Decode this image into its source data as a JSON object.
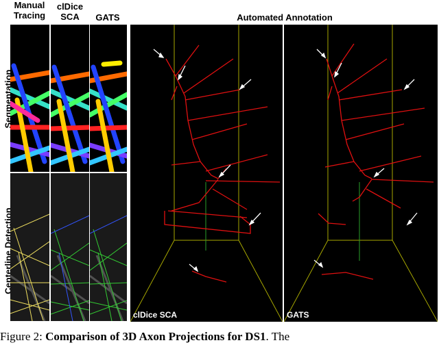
{
  "headers": {
    "manual_tracing": "Manual\nTracing",
    "cldice_sca": "clDice\nSCA",
    "gats": "GATS",
    "automated_annotation": "Automated Annotation"
  },
  "row_labels": {
    "segmentation": "Segmentation",
    "centerline": "Centerline Detection"
  },
  "panel_labels": {
    "left": "clDice SCA",
    "right": "GATS"
  },
  "caption": {
    "prefix": "Figure 2: ",
    "bold": "Comparison of 3D Axon Projections for DS1",
    "suffix": ". The"
  },
  "colors": {
    "trace_red": "#e01010",
    "box_yellow": "#a8a800",
    "box_green": "#2aa02a",
    "arrow_white": "#ffffff"
  }
}
